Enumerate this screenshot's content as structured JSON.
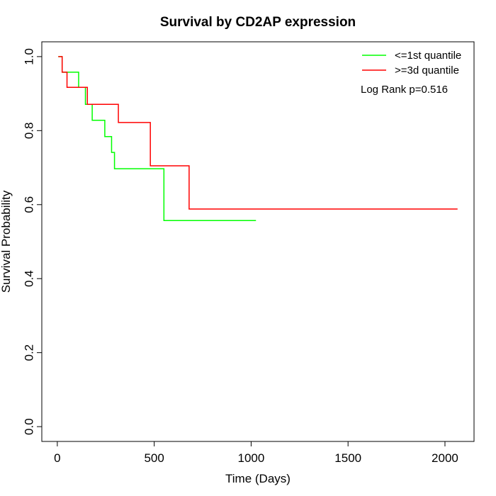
{
  "chart_data": {
    "type": "line",
    "step": true,
    "title": "Survival by CD2AP expression",
    "xlabel": "Time (Days)",
    "ylabel": "Survival Probability",
    "xlim": [
      -80,
      2150
    ],
    "ylim": [
      -0.04,
      1.04
    ],
    "xticks": [
      0,
      500,
      1000,
      1500,
      2000
    ],
    "xtick_labels": [
      "0",
      "500",
      "1000",
      "1500",
      "2000"
    ],
    "yticks": [
      0.0,
      0.2,
      0.4,
      0.6,
      0.8,
      1.0
    ],
    "ytick_labels": [
      "0.0",
      "0.2",
      "0.4",
      "0.6",
      "0.8",
      "1.0"
    ],
    "grid": false,
    "legend_position": "top-right",
    "annotation": "Log Rank p=0.516",
    "series": [
      {
        "name": "<=1st quantile",
        "color": "#00ff00",
        "x": [
          5,
          25,
          110,
          145,
          180,
          245,
          280,
          295,
          305,
          550,
          1025
        ],
        "y": [
          1.0,
          0.958,
          0.917,
          0.871,
          0.828,
          0.784,
          0.741,
          0.697,
          0.697,
          0.557,
          0.557
        ]
      },
      {
        "name": ">=3d quantile",
        "color": "#ff0000",
        "x": [
          5,
          25,
          50,
          155,
          315,
          480,
          680,
          2065
        ],
        "y": [
          1.0,
          0.958,
          0.917,
          0.871,
          0.822,
          0.705,
          0.588,
          0.588
        ]
      }
    ]
  }
}
